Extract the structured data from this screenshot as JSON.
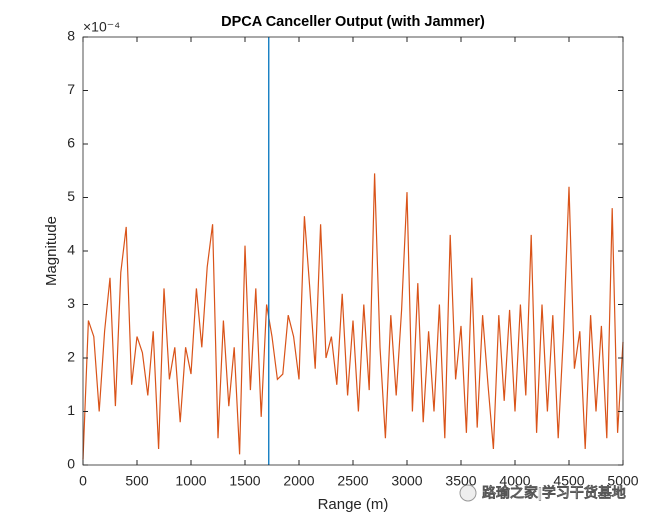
{
  "chart_data": {
    "type": "line",
    "title": "DPCA Canceller Output (with Jammer)",
    "x_label": "Range (m)",
    "y_label": "Magnitude",
    "y_exponent_label": "×10⁻⁴",
    "xlim": [
      0,
      5000
    ],
    "ylim": [
      0,
      8
    ],
    "xticks": [
      0,
      500,
      1000,
      1500,
      2000,
      2500,
      3000,
      3500,
      4000,
      4500,
      5000
    ],
    "yticks": [
      0,
      1,
      2,
      3,
      4,
      5,
      6,
      7,
      8
    ],
    "grid": false,
    "x": [
      0,
      50,
      100,
      150,
      200,
      250,
      300,
      350,
      400,
      450,
      500,
      550,
      600,
      650,
      700,
      750,
      800,
      850,
      900,
      950,
      1000,
      1050,
      1100,
      1150,
      1200,
      1250,
      1300,
      1350,
      1400,
      1450,
      1500,
      1550,
      1600,
      1650,
      1700,
      1750,
      1800,
      1850,
      1900,
      1950,
      2000,
      2050,
      2100,
      2150,
      2200,
      2250,
      2300,
      2350,
      2400,
      2450,
      2500,
      2550,
      2600,
      2650,
      2700,
      2750,
      2800,
      2850,
      2900,
      2950,
      3000,
      3050,
      3100,
      3150,
      3200,
      3250,
      3300,
      3350,
      3400,
      3450,
      3500,
      3550,
      3600,
      3650,
      3700,
      3750,
      3800,
      3850,
      3900,
      3950,
      4000,
      4050,
      4100,
      4150,
      4200,
      4250,
      4300,
      4350,
      4400,
      4450,
      4500,
      4550,
      4600,
      4650,
      4700,
      4750,
      4800,
      4850,
      4900,
      4950,
      5000
    ],
    "series": [
      {
        "color": "#d95319",
        "values": [
          0.1,
          2.7,
          2.4,
          1.0,
          2.5,
          3.5,
          1.1,
          3.6,
          4.45,
          1.5,
          2.4,
          2.1,
          1.3,
          2.5,
          0.3,
          3.3,
          1.6,
          2.2,
          0.8,
          2.2,
          1.7,
          3.3,
          2.2,
          3.7,
          4.5,
          0.5,
          2.7,
          1.1,
          2.2,
          0.2,
          4.1,
          1.4,
          3.3,
          0.9,
          3.0,
          2.4,
          1.6,
          1.7,
          2.8,
          2.4,
          1.6,
          4.65,
          3.3,
          1.8,
          4.5,
          2.0,
          2.4,
          1.5,
          3.2,
          1.3,
          2.7,
          1.0,
          3.0,
          1.4,
          5.45,
          2.2,
          0.5,
          2.8,
          1.3,
          2.9,
          5.1,
          1.0,
          3.4,
          0.8,
          2.5,
          1.0,
          3.0,
          0.5,
          4.3,
          1.6,
          2.6,
          0.6,
          3.5,
          0.7,
          2.8,
          1.5,
          0.3,
          2.8,
          1.2,
          2.9,
          1.0,
          3.0,
          1.3,
          4.3,
          0.6,
          3.0,
          1.0,
          2.8,
          0.5,
          2.5,
          5.2,
          1.8,
          2.5,
          0.3,
          2.8,
          1.0,
          2.6,
          0.5,
          4.8,
          0.6,
          2.3
        ]
      }
    ],
    "vline": {
      "x": 1720,
      "color": "#0072bd"
    },
    "watermark": "路瑜之家|学习干货基地"
  }
}
